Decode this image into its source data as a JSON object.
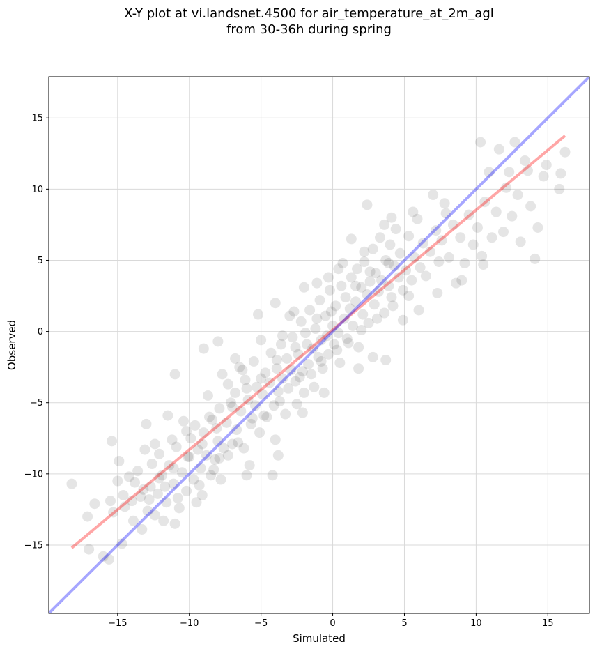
{
  "figure": {
    "title_line1": "X-Y plot at vi.landsnet.4500 for air_temperature_at_2m_agl",
    "title_line2": "from 30-36h during spring"
  },
  "chart_data": {
    "type": "scatter",
    "title": "X-Y plot at vi.landsnet.4500 for air_temperature_at_2m_agl from 30-36h during spring",
    "xlabel": "Simulated",
    "ylabel": "Observed",
    "xlim": [
      -19.8,
      17.9
    ],
    "ylim": [
      -19.8,
      17.9
    ],
    "xticks": [
      -15,
      -10,
      -5,
      0,
      5,
      10,
      15
    ],
    "yticks": [
      -15,
      -10,
      -5,
      0,
      5,
      10,
      15
    ],
    "xtick_labels": [
      "−15",
      "−10",
      "−5",
      "0",
      "5",
      "10",
      "15"
    ],
    "ytick_labels": [
      "−15",
      "−10",
      "−5",
      "0",
      "5",
      "10",
      "15"
    ],
    "grid": true,
    "marker_color": "#000000",
    "marker_alpha": 0.1,
    "series": [
      {
        "points": [
          [
            -18.2,
            -10.7
          ],
          [
            -17.0,
            -15.3
          ],
          [
            -16.6,
            -12.1
          ],
          [
            -17.1,
            -13.0
          ],
          [
            -16.0,
            -15.8
          ],
          [
            -15.6,
            -16.0
          ],
          [
            -15.3,
            -12.7
          ],
          [
            -15.0,
            -10.5
          ],
          [
            -14.9,
            -9.1
          ],
          [
            -14.7,
            -14.9
          ],
          [
            -14.5,
            -12.3
          ],
          [
            -15.4,
            -7.7
          ],
          [
            -15.5,
            -11.9
          ],
          [
            -14.2,
            -10.2
          ],
          [
            -14.0,
            -11.9
          ],
          [
            -13.9,
            -13.3
          ],
          [
            -13.6,
            -9.8
          ],
          [
            -13.4,
            -11.6
          ],
          [
            -13.3,
            -13.9
          ],
          [
            -13.1,
            -8.3
          ],
          [
            -13.0,
            -6.5
          ],
          [
            -12.9,
            -12.6
          ],
          [
            -12.7,
            -10.9
          ],
          [
            -12.6,
            -9.3
          ],
          [
            -12.4,
            -12.9
          ],
          [
            -12.2,
            -11.4
          ],
          [
            -12.1,
            -8.6
          ],
          [
            -11.9,
            -10.1
          ],
          [
            -11.8,
            -13.3
          ],
          [
            -11.6,
            -12.0
          ],
          [
            -11.4,
            -9.4
          ],
          [
            -11.2,
            -7.6
          ],
          [
            -11.1,
            -10.7
          ],
          [
            -11.0,
            -13.5
          ],
          [
            -10.9,
            -8.1
          ],
          [
            -10.7,
            -12.4
          ],
          [
            -10.5,
            -9.9
          ],
          [
            -10.4,
            -6.3
          ],
          [
            -10.2,
            -11.2
          ],
          [
            -10.0,
            -8.8
          ],
          [
            -9.9,
            -7.5
          ],
          [
            -9.7,
            -10.4
          ],
          [
            -9.5,
            -12.0
          ],
          [
            -9.4,
            -8.3
          ],
          [
            -9.2,
            -9.6
          ],
          [
            -9.1,
            -11.5
          ],
          [
            -9.0,
            -7.1
          ],
          [
            -8.8,
            -8.7
          ],
          [
            -8.7,
            -4.5
          ],
          [
            -8.5,
            -10.1
          ],
          [
            -8.4,
            -6.2
          ],
          [
            -8.2,
            -9.0
          ],
          [
            -8.0,
            -7.7
          ],
          [
            -7.9,
            -5.4
          ],
          [
            -7.8,
            -10.4
          ],
          [
            -7.6,
            -8.2
          ],
          [
            -7.4,
            -6.4
          ],
          [
            -7.3,
            -3.7
          ],
          [
            -7.1,
            -5.0
          ],
          [
            -7.0,
            -7.9
          ],
          [
            -6.8,
            -4.3
          ],
          [
            -6.7,
            -6.9
          ],
          [
            -6.5,
            -2.5
          ],
          [
            -6.4,
            -5.6
          ],
          [
            -6.2,
            -8.2
          ],
          [
            -6.1,
            -3.4
          ],
          [
            -6.0,
            -10.1
          ],
          [
            -5.9,
            -4.8
          ],
          [
            -5.7,
            -6.5
          ],
          [
            -5.5,
            -2.1
          ],
          [
            -5.4,
            -5.2
          ],
          [
            -5.3,
            -3.9
          ],
          [
            -5.1,
            -7.1
          ],
          [
            -5.0,
            -0.6
          ],
          [
            -4.9,
            -4.4
          ],
          [
            -4.7,
            -2.9
          ],
          [
            -4.6,
            -6.0
          ],
          [
            -4.4,
            -3.6
          ],
          [
            -4.3,
            -1.5
          ],
          [
            -4.1,
            -5.2
          ],
          [
            -4.0,
            -7.6
          ],
          [
            -3.9,
            -2.6
          ],
          [
            -3.8,
            -4.2
          ],
          [
            -3.6,
            -0.9
          ],
          [
            -3.5,
            -3.3
          ],
          [
            -3.3,
            -5.8
          ],
          [
            -3.2,
            -1.9
          ],
          [
            -3.1,
            -4.0
          ],
          [
            -2.9,
            -2.7
          ],
          [
            -2.8,
            -0.4
          ],
          [
            -2.6,
            -3.5
          ],
          [
            -2.5,
            -5.1
          ],
          [
            -2.4,
            -1.6
          ],
          [
            -2.2,
            0.7
          ],
          [
            -2.1,
            -2.8
          ],
          [
            -2.0,
            -4.3
          ],
          [
            -1.8,
            -0.9
          ],
          [
            -1.7,
            -2.3
          ],
          [
            -1.6,
            1.5
          ],
          [
            -1.4,
            -1.2
          ],
          [
            -1.3,
            -3.9
          ],
          [
            -1.2,
            0.2
          ],
          [
            -1.0,
            -1.8
          ],
          [
            -0.9,
            2.2
          ],
          [
            -0.8,
            -0.6
          ],
          [
            -0.7,
            -2.6
          ],
          [
            -0.5,
            1.1
          ],
          [
            -0.4,
            -0.3
          ],
          [
            -0.3,
            -1.6
          ],
          [
            -0.2,
            2.9
          ],
          [
            0.0,
            0.4
          ],
          [
            0.1,
            -0.9
          ],
          [
            0.2,
            1.8
          ],
          [
            0.4,
            -0.1
          ],
          [
            0.5,
            -2.2
          ],
          [
            0.6,
            3.2
          ],
          [
            0.8,
            0.9
          ],
          [
            0.9,
            2.4
          ],
          [
            1.0,
            -0.5
          ],
          [
            1.2,
            1.6
          ],
          [
            1.3,
            3.8
          ],
          [
            1.4,
            0.4
          ],
          [
            1.6,
            2.1
          ],
          [
            1.7,
            4.4
          ],
          [
            1.8,
            -1.1
          ],
          [
            2.0,
            3.1
          ],
          [
            2.1,
            1.2
          ],
          [
            2.2,
            4.9
          ],
          [
            2.4,
            2.6
          ],
          [
            2.5,
            0.6
          ],
          [
            2.6,
            3.5
          ],
          [
            2.8,
            5.8
          ],
          [
            2.9,
            1.9
          ],
          [
            3.0,
            4.1
          ],
          [
            3.2,
            2.8
          ],
          [
            3.3,
            6.6
          ],
          [
            3.4,
            3.6
          ],
          [
            3.6,
            1.3
          ],
          [
            3.7,
            5.0
          ],
          [
            3.9,
            3.2
          ],
          [
            4.0,
            6.1
          ],
          [
            4.1,
            2.4
          ],
          [
            4.3,
            4.6
          ],
          [
            4.4,
            7.2
          ],
          [
            4.6,
            3.8
          ],
          [
            4.7,
            5.5
          ],
          [
            4.9,
            2.9
          ],
          [
            5.1,
            4.3
          ],
          [
            5.3,
            6.7
          ],
          [
            5.5,
            3.6
          ],
          [
            5.7,
            5.2
          ],
          [
            5.9,
            7.9
          ],
          [
            6.1,
            4.5
          ],
          [
            6.3,
            6.2
          ],
          [
            6.5,
            3.9
          ],
          [
            6.8,
            5.6
          ],
          [
            7.0,
            9.6
          ],
          [
            7.2,
            7.1
          ],
          [
            7.4,
            4.9
          ],
          [
            7.6,
            6.4
          ],
          [
            7.9,
            8.3
          ],
          [
            8.1,
            5.2
          ],
          [
            8.4,
            7.5
          ],
          [
            8.6,
            3.4
          ],
          [
            8.9,
            6.6
          ],
          [
            9.2,
            4.8
          ],
          [
            9.5,
            8.2
          ],
          [
            9.8,
            6.1
          ],
          [
            10.1,
            7.3
          ],
          [
            10.3,
            13.3
          ],
          [
            10.4,
            5.3
          ],
          [
            10.6,
            9.1
          ],
          [
            10.9,
            11.2
          ],
          [
            11.1,
            6.6
          ],
          [
            11.4,
            8.4
          ],
          [
            11.6,
            12.8
          ],
          [
            11.9,
            7.0
          ],
          [
            12.1,
            10.1
          ],
          [
            12.3,
            11.2
          ],
          [
            12.5,
            8.1
          ],
          [
            12.7,
            13.3
          ],
          [
            12.9,
            9.6
          ],
          [
            13.1,
            6.3
          ],
          [
            13.4,
            12.0
          ],
          [
            13.6,
            11.3
          ],
          [
            13.8,
            8.8
          ],
          [
            14.1,
            5.1
          ],
          [
            14.3,
            7.3
          ],
          [
            14.7,
            10.9
          ],
          [
            14.9,
            11.7
          ],
          [
            15.8,
            10.0
          ],
          [
            15.9,
            11.1
          ],
          [
            16.2,
            12.6
          ],
          [
            -12.4,
            -7.9
          ],
          [
            -9.6,
            -6.6
          ],
          [
            -7.7,
            -3.0
          ],
          [
            -6.3,
            -2.7
          ],
          [
            -3.5,
            -0.3
          ],
          [
            -2.7,
            1.4
          ],
          [
            -1.1,
            3.4
          ],
          [
            0.4,
            4.4
          ],
          [
            1.3,
            6.5
          ],
          [
            2.4,
            8.9
          ],
          [
            4.1,
            8.0
          ],
          [
            -11.5,
            -5.9
          ],
          [
            -10.2,
            -7.0
          ],
          [
            -8.6,
            -6.0
          ],
          [
            -7.9,
            -8.9
          ],
          [
            -5.8,
            -9.4
          ],
          [
            -3.8,
            -8.7
          ],
          [
            -4.2,
            -10.1
          ],
          [
            -2.1,
            -5.7
          ],
          [
            -0.6,
            -4.3
          ],
          [
            1.8,
            -2.6
          ],
          [
            2.8,
            -1.8
          ],
          [
            3.7,
            -2.0
          ],
          [
            4.9,
            0.8
          ],
          [
            6.0,
            1.5
          ],
          [
            7.3,
            2.7
          ],
          [
            9.0,
            3.6
          ],
          [
            10.5,
            4.7
          ],
          [
            -14.6,
            -11.5
          ],
          [
            -13.8,
            -10.6
          ],
          [
            -12.8,
            -11.8
          ],
          [
            -11.7,
            -10.9
          ],
          [
            -10.8,
            -11.7
          ],
          [
            -9.3,
            -10.8
          ],
          [
            -8.3,
            -9.7
          ],
          [
            -7.3,
            -8.7
          ],
          [
            -6.6,
            -7.8
          ],
          [
            -5.6,
            -6.1
          ],
          [
            -4.8,
            -5.9
          ],
          [
            -3.7,
            -4.9
          ],
          [
            -2.3,
            -3.2
          ],
          [
            -1.5,
            -3.0
          ],
          [
            -0.8,
            -2.1
          ],
          [
            0.3,
            -1.3
          ],
          [
            1.1,
            -0.8
          ],
          [
            2.0,
            0.1
          ],
          [
            3.1,
            0.9
          ],
          [
            4.2,
            1.8
          ],
          [
            5.3,
            2.5
          ],
          [
            -2.0,
            3.1
          ],
          [
            -0.3,
            3.8
          ],
          [
            0.7,
            4.8
          ],
          [
            2.2,
            5.6
          ],
          [
            3.6,
            7.5
          ],
          [
            5.6,
            8.4
          ],
          [
            7.8,
            9.0
          ],
          [
            -4.0,
            2.0
          ],
          [
            -3.0,
            1.1
          ],
          [
            -5.2,
            1.2
          ],
          [
            -8.0,
            -0.7
          ],
          [
            -9.0,
            -1.2
          ],
          [
            -6.8,
            -1.9
          ],
          [
            -11.0,
            -3.0
          ],
          [
            -1.9,
            -0.1
          ],
          [
            -1.1,
            0.9
          ],
          [
            -0.1,
            1.4
          ],
          [
            1.6,
            3.2
          ],
          [
            2.6,
            4.2
          ],
          [
            3.9,
            4.8
          ],
          [
            -2.6,
            -1.1
          ],
          [
            -3.9,
            -2.0
          ],
          [
            -5.0,
            -3.3
          ],
          [
            -6.0,
            -4.0
          ],
          [
            -7.0,
            -5.3
          ],
          [
            -8.1,
            -6.8
          ],
          [
            -9.1,
            -7.9
          ],
          [
            -10.1,
            -8.8
          ],
          [
            -11.1,
            -9.6
          ],
          [
            -12.1,
            -10.3
          ],
          [
            -13.2,
            -11.1
          ]
        ]
      }
    ],
    "lines": [
      {
        "color": "#ff0000",
        "alpha": 0.35,
        "points": [
          [
            -18.2,
            -15.2
          ],
          [
            16.2,
            13.75
          ]
        ]
      },
      {
        "color": "#0000ff",
        "alpha": 0.35,
        "points": [
          [
            -19.8,
            -19.8
          ],
          [
            17.9,
            17.9
          ]
        ]
      }
    ]
  }
}
